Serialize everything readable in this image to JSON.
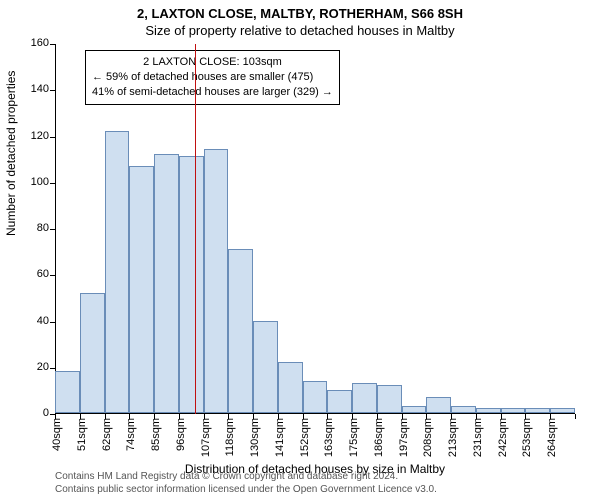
{
  "title_line1": "2, LAXTON CLOSE, MALTBY, ROTHERHAM, S66 8SH",
  "title_line2": "Size of property relative to detached houses in Maltby",
  "chart": {
    "type": "histogram",
    "bar_fill": "#cfdff0",
    "bar_border": "#6a8db8",
    "refline_color": "#c01010",
    "background": "#ffffff",
    "ylim": [
      0,
      160
    ],
    "ytick_step": 20,
    "label_fontsize": 11,
    "title_fontsize": 13,
    "categories": [
      "40sqm",
      "51sqm",
      "62sqm",
      "74sqm",
      "85sqm",
      "96sqm",
      "107sqm",
      "118sqm",
      "130sqm",
      "141sqm",
      "152sqm",
      "163sqm",
      "175sqm",
      "186sqm",
      "197sqm",
      "208sqm",
      "213sqm",
      "231sqm",
      "242sqm",
      "253sqm",
      "264sqm"
    ],
    "values": [
      18,
      52,
      122,
      107,
      112,
      111,
      114,
      71,
      40,
      22,
      14,
      10,
      13,
      12,
      3,
      7,
      3,
      2,
      2,
      2,
      2
    ],
    "refline_at_category_index": 6,
    "x_axis_title": "Distribution of detached houses by size in Maltby",
    "y_axis_title": "Number of detached properties"
  },
  "info_box": {
    "line1": "2 LAXTON CLOSE: 103sqm",
    "line2": "← 59% of detached houses are smaller (475)",
    "line3": "41% of semi-detached houses are larger (329) →"
  },
  "footer_line1": "Contains HM Land Registry data © Crown copyright and database right 2024.",
  "footer_line2": "Contains public sector information licensed under the Open Government Licence v3.0."
}
